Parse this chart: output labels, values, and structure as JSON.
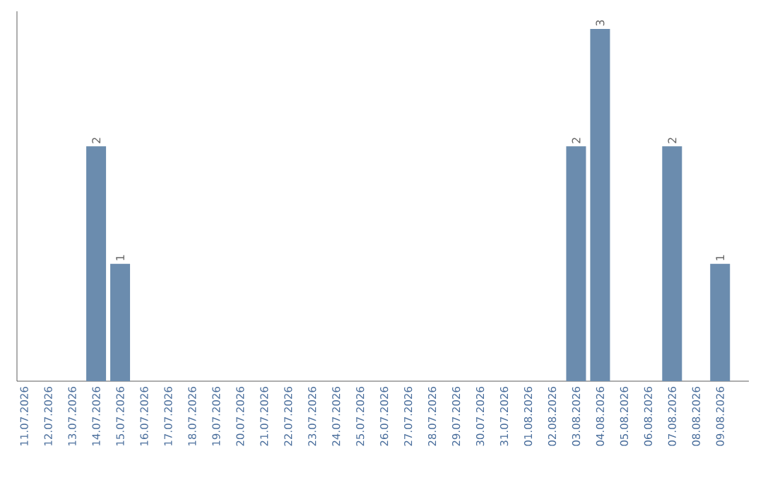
{
  "chart_data": {
    "type": "bar",
    "categories": [
      "11.07.2026",
      "12.07.2026",
      "13.07.2026",
      "14.07.2026",
      "15.07.2026",
      "16.07.2026",
      "17.07.2026",
      "18.07.2026",
      "19.07.2026",
      "20.07.2026",
      "21.07.2026",
      "22.07.2026",
      "23.07.2026",
      "24.07.2026",
      "25.07.2026",
      "26.07.2026",
      "27.07.2026",
      "28.07.2026",
      "29.07.2026",
      "30.07.2026",
      "31.07.2026",
      "01.08.2026",
      "02.08.2026",
      "03.08.2026",
      "04.08.2026",
      "05.08.2026",
      "06.08.2026",
      "07.08.2026",
      "08.08.2026",
      "09.08.2026"
    ],
    "values": [
      0,
      0,
      0,
      2,
      1,
      0,
      0,
      0,
      0,
      0,
      0,
      0,
      0,
      0,
      0,
      0,
      0,
      0,
      0,
      0,
      0,
      0,
      0,
      2,
      3,
      0,
      0,
      2,
      0,
      1
    ],
    "value_labels": [
      null,
      null,
      null,
      "2",
      "1",
      null,
      null,
      null,
      null,
      null,
      null,
      null,
      null,
      null,
      null,
      null,
      null,
      null,
      null,
      null,
      null,
      null,
      null,
      "2",
      "3",
      null,
      null,
      "2",
      null,
      "1"
    ],
    "color": "#6b8cae",
    "ylim": [
      0,
      3.15
    ],
    "tick_labels": "x"
  }
}
